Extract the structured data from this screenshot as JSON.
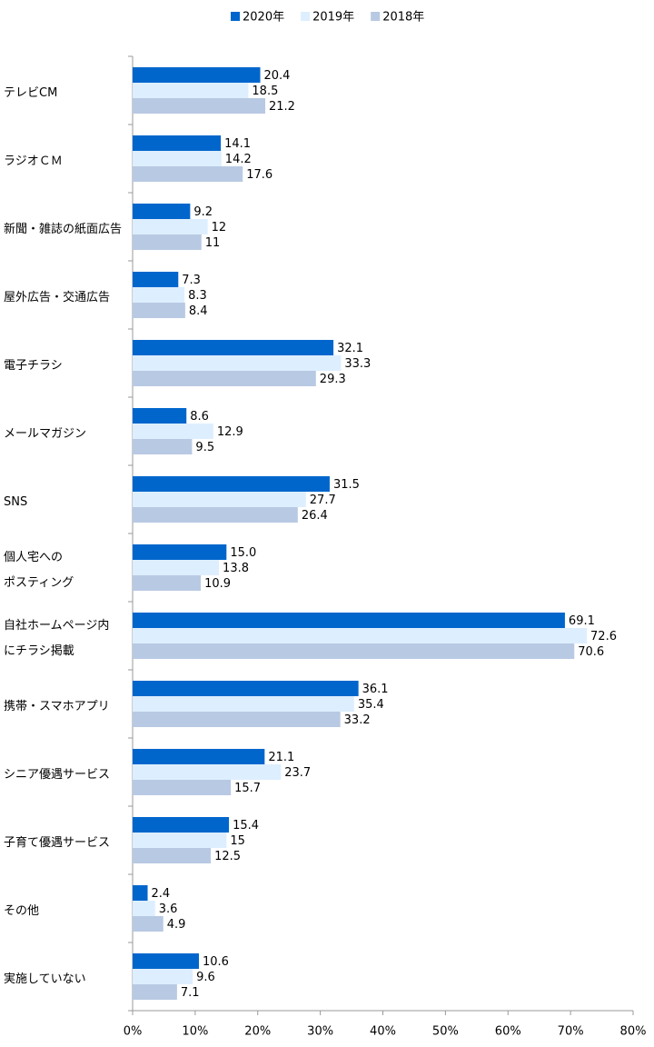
{
  "chart_data": {
    "type": "bar",
    "orientation": "horizontal",
    "categories": [
      "テレビCM",
      "ラジオＣＭ",
      "新聞・雑誌の紙面広告",
      "屋外広告・交通広告",
      "電子チラシ",
      "メールマガジン",
      "SNS",
      "個人宅への\nポスティング",
      "自社ホームページ内\nにチラシ掲載",
      "携帯・スマホアプリ",
      "シニア優遇サービス",
      "子育て優遇サービス",
      "その他",
      "実施していない"
    ],
    "series": [
      {
        "name": "2020年",
        "color": "#0066cc",
        "values": [
          20.4,
          14.1,
          9.2,
          7.3,
          32.1,
          8.6,
          31.5,
          15,
          69.1,
          36.1,
          21.1,
          15.4,
          2.4,
          10.6
        ],
        "value_labels": [
          "20.4",
          "14.1",
          "9.2",
          "7.3",
          "32.1",
          "8.6",
          "31.5",
          "15.0",
          "69.1",
          "36.1",
          "21.1",
          "15.4",
          "2.4",
          "10.6"
        ]
      },
      {
        "name": "2019年",
        "color": "#ddeeff",
        "values": [
          18.5,
          14.2,
          12,
          8.3,
          33.3,
          12.9,
          27.7,
          13.8,
          72.6,
          35.4,
          23.7,
          15,
          3.6,
          9.6
        ]
      },
      {
        "name": "2018年",
        "color": "#b8c9e3",
        "values": [
          21.2,
          17.6,
          11,
          8.4,
          29.3,
          9.5,
          26.4,
          10.9,
          70.6,
          33.2,
          15.7,
          12.5,
          4.9,
          7.1
        ]
      }
    ],
    "xlim": [
      0,
      80
    ],
    "xticks": [
      {
        "value": 0,
        "label": "0%"
      },
      {
        "value": 10,
        "label": "10%"
      },
      {
        "value": 20,
        "label": "20%"
      },
      {
        "value": 30,
        "label": "30%"
      },
      {
        "value": 40,
        "label": "40%"
      },
      {
        "value": 50,
        "label": "50%"
      },
      {
        "value": 60,
        "label": "60%"
      },
      {
        "value": 70,
        "label": "70%"
      },
      {
        "value": 80,
        "label": "80%"
      }
    ]
  }
}
